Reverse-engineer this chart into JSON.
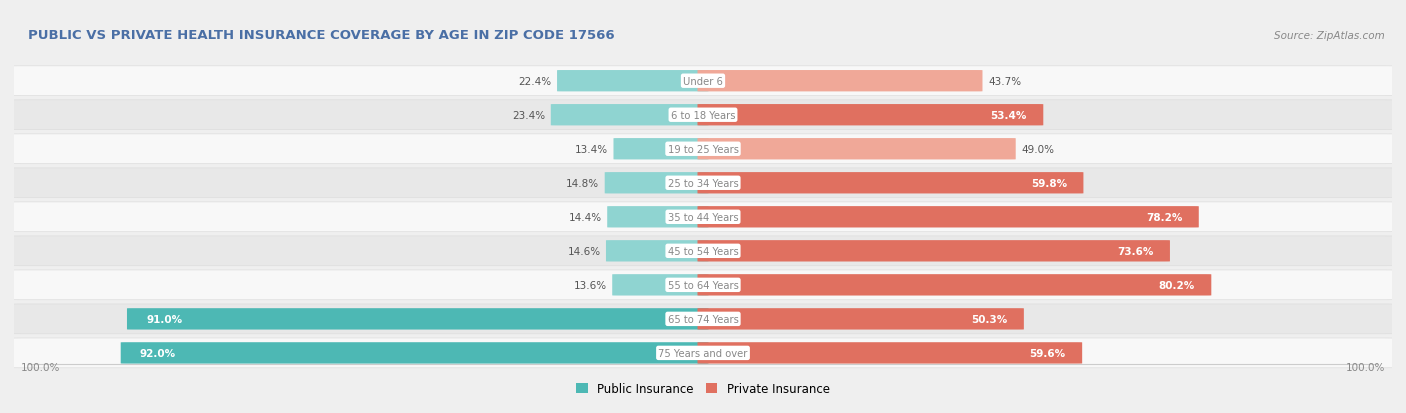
{
  "title": "PUBLIC VS PRIVATE HEALTH INSURANCE COVERAGE BY AGE IN ZIP CODE 17566",
  "source": "Source: ZipAtlas.com",
  "categories": [
    "Under 6",
    "6 to 18 Years",
    "19 to 25 Years",
    "25 to 34 Years",
    "35 to 44 Years",
    "45 to 54 Years",
    "55 to 64 Years",
    "65 to 74 Years",
    "75 Years and over"
  ],
  "public_values": [
    22.4,
    23.4,
    13.4,
    14.8,
    14.4,
    14.6,
    13.6,
    91.0,
    92.0
  ],
  "private_values": [
    43.7,
    53.4,
    49.0,
    59.8,
    78.2,
    73.6,
    80.2,
    50.3,
    59.6
  ],
  "public_color_solid": "#4db8b4",
  "public_color_light": "#8fd4d1",
  "private_color_solid": "#e07060",
  "private_color_light": "#f0a898",
  "bg_color": "#efefef",
  "row_color_odd": "#f8f8f8",
  "row_color_even": "#e8e8e8",
  "title_color": "#4a6fa5",
  "value_label_color": "#555555",
  "center_label_color": "#888888",
  "source_color": "#888888",
  "bottom_label_color": "#888888",
  "legend_public": "Public Insurance",
  "legend_private": "Private Insurance",
  "max_val": 100.0
}
